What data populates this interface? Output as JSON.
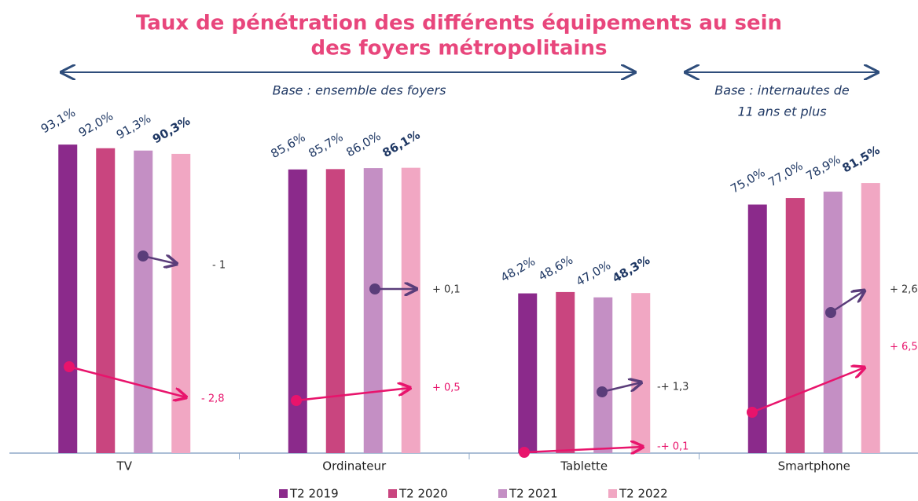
{
  "chart_data": {
    "type": "bar",
    "title": [
      "Taux de pénétration des différents équipements au sein",
      "des foyers métropolitains"
    ],
    "base_labels": [
      "Base : ensemble des foyers",
      "Base : internautes de",
      "11 ans et plus"
    ],
    "categories": [
      "TV",
      "Ordinateur",
      "Tablette",
      "Smartphone"
    ],
    "series": [
      {
        "name": "T2 2019",
        "color": "#8b2a8b",
        "values": [
          93.1,
          85.6,
          48.2,
          75.0
        ],
        "value_labels": [
          "93,1%",
          "85,6%",
          "48,2%",
          "75,0%"
        ]
      },
      {
        "name": "T2 2020",
        "color": "#c9457f",
        "values": [
          92.0,
          85.7,
          48.6,
          77.0
        ],
        "value_labels": [
          "92,0%",
          "85,7%",
          "48,6%",
          "77,0%"
        ]
      },
      {
        "name": "T2 2021",
        "color": "#c48fc4",
        "values": [
          91.3,
          86.0,
          47.0,
          78.9
        ],
        "value_labels": [
          "91,3%",
          "86,0%",
          "47,0%",
          "78,9%"
        ]
      },
      {
        "name": "T2 2022",
        "color": "#f1a7c3",
        "values": [
          90.3,
          86.1,
          48.3,
          81.5
        ],
        "value_labels": [
          "90,3%",
          "86,1%",
          "48,3%",
          "81,5%"
        ],
        "bold": true
      }
    ],
    "change_labels": [
      [
        "- 1",
        "- 2,8"
      ],
      [
        "+ 0,1",
        "+ 0,5"
      ],
      [
        "-+ 1,3",
        "-+ 0,1"
      ],
      [
        "+ 2,6",
        "+ 6,5"
      ]
    ],
    "ylim": [
      0,
      100
    ]
  }
}
